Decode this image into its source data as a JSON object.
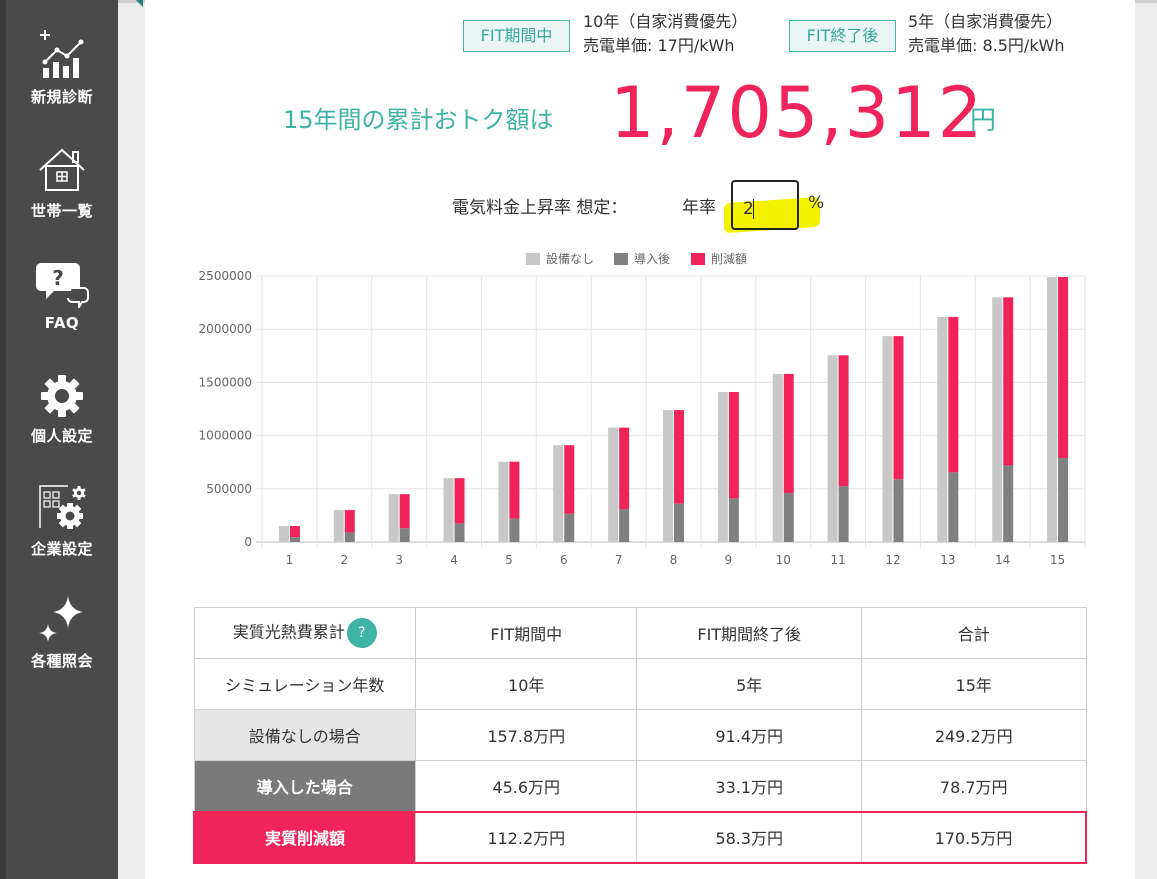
{
  "sidebar": {
    "items": [
      {
        "label": "新規診断",
        "icon": "chart-plus-icon"
      },
      {
        "label": "世帯一覧",
        "icon": "house-icon"
      },
      {
        "label": "FAQ",
        "icon": "question-chat-icon"
      },
      {
        "label": "個人設定",
        "icon": "gear-icon"
      },
      {
        "label": "企業設定",
        "icon": "company-gear-icon"
      },
      {
        "label": "各種照会",
        "icon": "sparkle-icon"
      }
    ]
  },
  "fit": {
    "during": {
      "badge": "FIT期間中",
      "line1": "10年（自家消費優先）",
      "line2": "売電単価: 17円/kWh"
    },
    "after": {
      "badge": "FIT終了後",
      "line1": "5年（自家消費優先）",
      "line2": "売電単価: 8.5円/kWh"
    }
  },
  "savings": {
    "label": "15年間の累計おトク額は",
    "value": "1,705,312",
    "unit": "円"
  },
  "rate": {
    "label": "電気料金上昇率 想定：",
    "prefix": "年率",
    "value": "2",
    "unit": "%"
  },
  "colors": {
    "accent": "#3fb3a4",
    "highlight": "#f0245a",
    "no_equipment": "#c8c8c8",
    "after_install": "#808080"
  },
  "chart_data": {
    "type": "bar",
    "legend": [
      "設備なし",
      "導入後",
      "削減額"
    ],
    "legend_position": "top",
    "categories": [
      "1",
      "2",
      "3",
      "4",
      "5",
      "6",
      "7",
      "8",
      "9",
      "10",
      "11",
      "12",
      "13",
      "14",
      "15"
    ],
    "ylim": [
      0,
      2500000
    ],
    "yticks": [
      "0",
      "500000",
      "1000000",
      "1500000",
      "2000000",
      "2500000"
    ],
    "grid": true,
    "series": [
      {
        "name": "設備なし",
        "values": [
          150000,
          300000,
          450000,
          600000,
          755000,
          910000,
          1075000,
          1240000,
          1410000,
          1580000,
          1755000,
          1935000,
          2115000,
          2300000,
          2490000
        ]
      },
      {
        "name": "導入後",
        "values": [
          45000,
          90000,
          130000,
          175000,
          220000,
          265000,
          310000,
          360000,
          410000,
          460000,
          525000,
          590000,
          655000,
          720000,
          790000
        ]
      },
      {
        "name": "削減額",
        "values": [
          105000,
          210000,
          320000,
          425000,
          535000,
          645000,
          765000,
          880000,
          1000000,
          1120000,
          1230000,
          1345000,
          1460000,
          1580000,
          1700000
        ]
      }
    ]
  },
  "table": {
    "header": {
      "label": "実質光熱費累計",
      "help": "?",
      "cols": [
        "FIT期間中",
        "FIT期間終了後",
        "合計"
      ]
    },
    "rows": [
      {
        "label": "シミュレーション年数",
        "values": [
          "10年",
          "5年",
          "15年"
        ]
      },
      {
        "label": "設備なしの場合",
        "values": [
          "157.8万円",
          "91.4万円",
          "249.2万円"
        ]
      },
      {
        "label": "導入した場合",
        "values": [
          "45.6万円",
          "33.1万円",
          "78.7万円"
        ]
      },
      {
        "label": "実質削減額",
        "values": [
          "112.2万円",
          "58.3万円",
          "170.5万円"
        ]
      }
    ]
  }
}
